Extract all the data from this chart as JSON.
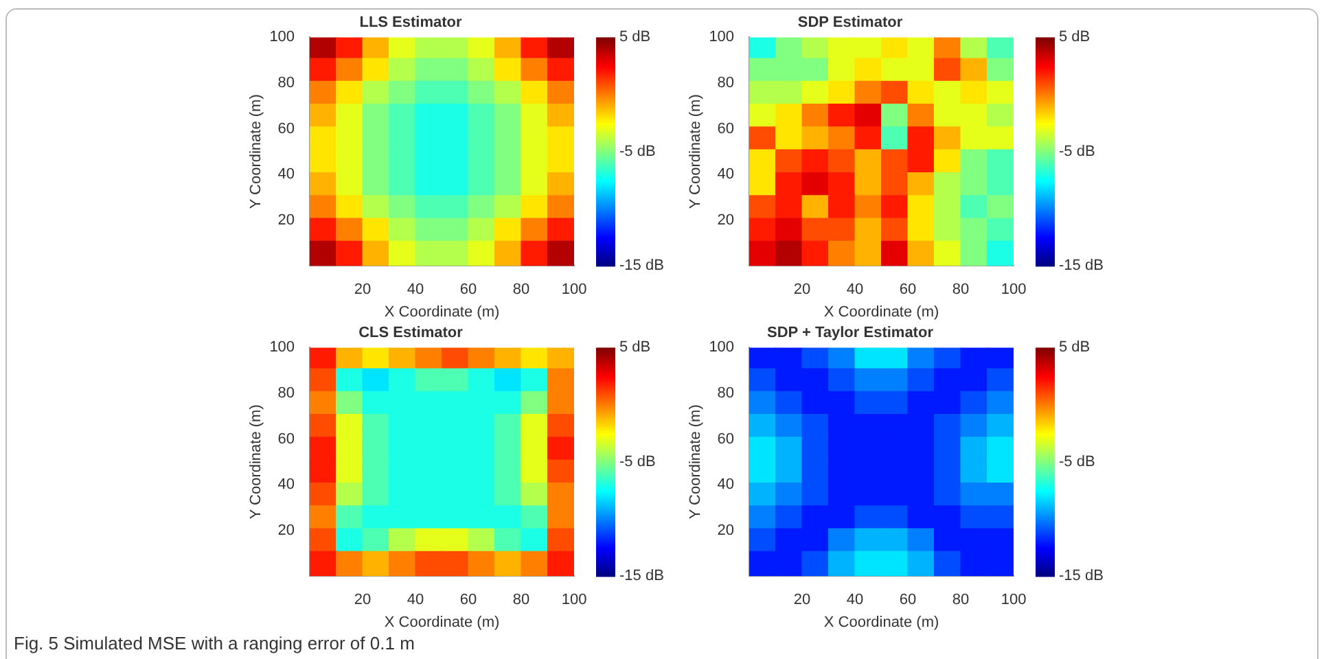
{
  "chart_data": [
    {
      "type": "heatmap",
      "title": "LLS Estimator",
      "xlabel": "X Coordinate (m)",
      "ylabel": "Y Coordinate (m)",
      "xlim": [
        0,
        100
      ],
      "ylim": [
        0,
        100
      ],
      "xticks": [
        20,
        40,
        60,
        80,
        100
      ],
      "yticks": [
        20,
        40,
        60,
        80,
        100
      ],
      "clim": [
        -15,
        5
      ],
      "cticks": [
        {
          "value": 5,
          "label": "5 dB"
        },
        {
          "value": -5,
          "label": "-5 dB"
        },
        {
          "value": -15,
          "label": "-15 dB"
        }
      ],
      "cells": [
        [
          4,
          2,
          -1,
          -3,
          -4,
          -4,
          -3,
          -1,
          2,
          4
        ],
        [
          2,
          0,
          -2,
          -4,
          -5,
          -5,
          -4,
          -2,
          0,
          2
        ],
        [
          0,
          -2,
          -4,
          -5,
          -6,
          -6,
          -5,
          -4,
          -2,
          0
        ],
        [
          -1,
          -3,
          -5,
          -6,
          -7,
          -7,
          -6,
          -5,
          -3,
          -1
        ],
        [
          -2,
          -3,
          -5,
          -6,
          -7,
          -7,
          -6,
          -5,
          -3,
          -2
        ],
        [
          -2,
          -3,
          -5,
          -6,
          -7,
          -7,
          -6,
          -5,
          -3,
          -2
        ],
        [
          -1,
          -3,
          -5,
          -6,
          -7,
          -7,
          -6,
          -5,
          -3,
          -1
        ],
        [
          0,
          -2,
          -4,
          -5,
          -6,
          -6,
          -5,
          -4,
          -2,
          0
        ],
        [
          2,
          0,
          -2,
          -4,
          -5,
          -5,
          -4,
          -2,
          0,
          2
        ],
        [
          4,
          2,
          -1,
          -3,
          -4,
          -4,
          -3,
          -1,
          2,
          4
        ]
      ]
    },
    {
      "type": "heatmap",
      "title": "SDP Estimator",
      "xlabel": "X Coordinate (m)",
      "ylabel": "Y Coordinate (m)",
      "xlim": [
        0,
        100
      ],
      "ylim": [
        0,
        100
      ],
      "xticks": [
        20,
        40,
        60,
        80,
        100
      ],
      "yticks": [
        20,
        40,
        60,
        80,
        100
      ],
      "clim": [
        -15,
        5
      ],
      "cticks": [
        {
          "value": 5,
          "label": "5 dB"
        },
        {
          "value": -5,
          "label": "-5 dB"
        },
        {
          "value": -15,
          "label": "-15 dB"
        }
      ],
      "cells": [
        [
          -7,
          -5,
          -4,
          -3,
          -3,
          -2,
          -3,
          0,
          -4,
          -6
        ],
        [
          -5,
          -5,
          -5,
          -3,
          -2,
          -3,
          -3,
          1,
          -1,
          -5
        ],
        [
          -4,
          -4,
          -3,
          -2,
          0,
          1,
          -2,
          -3,
          -2,
          -3
        ],
        [
          -3,
          -2,
          0,
          2,
          3,
          -5,
          0,
          -3,
          -3,
          -4
        ],
        [
          1,
          -2,
          -1,
          0,
          2,
          -6,
          2,
          -1,
          -3,
          -3
        ],
        [
          -2,
          1,
          2,
          1,
          -1,
          1,
          2,
          -2,
          -5,
          -6
        ],
        [
          -2,
          2,
          3,
          2,
          -1,
          1,
          -1,
          -4,
          -5,
          -6
        ],
        [
          1,
          2,
          -1,
          2,
          0,
          2,
          -2,
          -4,
          -6,
          -5
        ],
        [
          2,
          3,
          1,
          1,
          -1,
          1,
          -2,
          -4,
          -5,
          -6
        ],
        [
          3,
          4,
          2,
          0,
          -1,
          3,
          -1,
          -3,
          -5,
          -7
        ]
      ]
    },
    {
      "type": "heatmap",
      "title": "CLS Estimator",
      "xlabel": "X Coordinate (m)",
      "ylabel": "Y Coordinate (m)",
      "xlim": [
        0,
        100
      ],
      "ylim": [
        0,
        100
      ],
      "xticks": [
        20,
        40,
        60,
        80,
        100
      ],
      "yticks": [
        20,
        40,
        60,
        80,
        100
      ],
      "clim": [
        -15,
        5
      ],
      "cticks": [
        {
          "value": 5,
          "label": "5 dB"
        },
        {
          "value": -5,
          "label": "-5 dB"
        },
        {
          "value": -15,
          "label": "-15 dB"
        }
      ],
      "annotations": [
        "Fig. 5 Simulated MSE with a ranging error of 0.1 m"
      ],
      "cells": [
        [
          2,
          -1,
          -2,
          -1,
          0,
          1,
          0,
          -1,
          -2,
          -1
        ],
        [
          1,
          -7,
          -8,
          -7,
          -6,
          -6,
          -7,
          -8,
          -7,
          0
        ],
        [
          0,
          -5,
          -7,
          -7,
          -7,
          -7,
          -7,
          -7,
          -5,
          0
        ],
        [
          1,
          -3,
          -6,
          -7,
          -7,
          -7,
          -7,
          -6,
          -3,
          1
        ],
        [
          2,
          -3,
          -6,
          -7,
          -7,
          -7,
          -7,
          -6,
          -3,
          2
        ],
        [
          2,
          -3,
          -6,
          -7,
          -7,
          -7,
          -7,
          -6,
          -3,
          1
        ],
        [
          1,
          -4,
          -6,
          -7,
          -7,
          -7,
          -7,
          -6,
          -4,
          0
        ],
        [
          0,
          -6,
          -7,
          -7,
          -7,
          -7,
          -7,
          -7,
          -6,
          0
        ],
        [
          1,
          -7,
          -6,
          -4,
          -3,
          -3,
          -4,
          -6,
          -7,
          1
        ],
        [
          2,
          0,
          -1,
          0,
          1,
          1,
          0,
          -1,
          0,
          2
        ]
      ]
    },
    {
      "type": "heatmap",
      "title": "SDP + Taylor Estimator",
      "xlabel": "X Coordinate (m)",
      "ylabel": "Y Coordinate (m)",
      "xlim": [
        0,
        100
      ],
      "ylim": [
        0,
        100
      ],
      "xticks": [
        20,
        40,
        60,
        80,
        100
      ],
      "yticks": [
        20,
        40,
        60,
        80,
        100
      ],
      "clim": [
        -15,
        5
      ],
      "cticks": [
        {
          "value": 5,
          "label": "5 dB"
        },
        {
          "value": -5,
          "label": "-5 dB"
        },
        {
          "value": -15,
          "label": "-15 dB"
        }
      ],
      "cells": [
        [
          -12,
          -12,
          -11,
          -10,
          -8,
          -8,
          -10,
          -11,
          -12,
          -12
        ],
        [
          -11,
          -12,
          -12,
          -11,
          -10,
          -10,
          -11,
          -12,
          -12,
          -11
        ],
        [
          -10,
          -11,
          -12,
          -12,
          -11,
          -11,
          -12,
          -12,
          -11,
          -10
        ],
        [
          -9,
          -10,
          -11,
          -12,
          -12,
          -12,
          -12,
          -11,
          -10,
          -9
        ],
        [
          -8,
          -9,
          -11,
          -12,
          -12,
          -12,
          -12,
          -11,
          -9,
          -8
        ],
        [
          -8,
          -9,
          -11,
          -12,
          -12,
          -12,
          -12,
          -11,
          -9,
          -8
        ],
        [
          -9,
          -10,
          -11,
          -12,
          -12,
          -12,
          -12,
          -11,
          -10,
          -10
        ],
        [
          -10,
          -11,
          -12,
          -12,
          -11,
          -11,
          -12,
          -12,
          -11,
          -11
        ],
        [
          -11,
          -12,
          -12,
          -10,
          -9,
          -9,
          -10,
          -12,
          -12,
          -12
        ],
        [
          -12,
          -12,
          -11,
          -9,
          -8,
          -8,
          -9,
          -11,
          -12,
          -12
        ]
      ]
    }
  ]
}
